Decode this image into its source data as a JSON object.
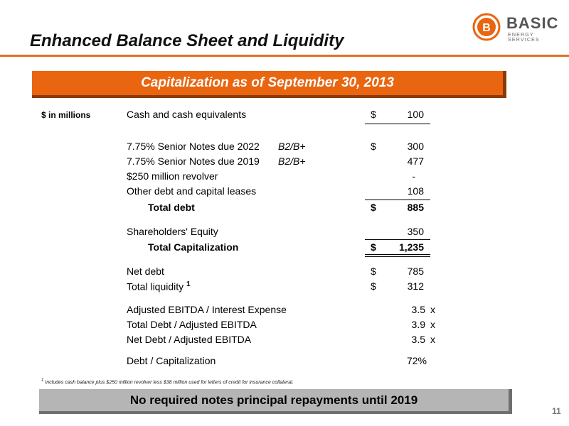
{
  "header": {
    "title": "Enhanced Balance Sheet and Liquidity",
    "logo_name": "BASIC",
    "logo_sub": "ENERGY SERVICES"
  },
  "banner": "Capitalization as of September 30, 2013",
  "units_label": "$ in millions",
  "rows": [
    {
      "label": "Cash and cash equivalents",
      "dollar": "$",
      "value": "100"
    },
    {
      "label": "7.75% Senior Notes due 2022",
      "rating": "B2/B+",
      "dollar": "$",
      "value": "300"
    },
    {
      "label": "7.75% Senior Notes due 2019",
      "rating": "B2/B+",
      "value": "477"
    },
    {
      "label": "$250 million revolver",
      "value": "-"
    },
    {
      "label": "Other debt and capital leases",
      "value": "108"
    },
    {
      "label": "Total debt",
      "dollar": "$",
      "value": "885"
    },
    {
      "label": "Shareholders' Equity",
      "value": "350"
    },
    {
      "label": "Total Capitalization",
      "dollar": "$",
      "value": "1,235"
    },
    {
      "label": "Net debt",
      "dollar": "$",
      "value": "785"
    },
    {
      "label": "Total liquidity",
      "superscript": "1",
      "dollar": "$",
      "value": "312"
    },
    {
      "label": "Adjusted EBITDA  / Interest Expense",
      "value": "3.5",
      "suffix": "x"
    },
    {
      "label": "Total Debt / Adjusted EBITDA",
      "value": "3.9",
      "suffix": "x"
    },
    {
      "label": "Net Debt / Adjusted EBITDA",
      "value": "3.5",
      "suffix": "x"
    },
    {
      "label": "Debt / Capitalization",
      "value": "72%"
    }
  ],
  "footnote": {
    "marker": "1",
    "text": "Includes cash balance plus $250 million revolver less $38 million used for letters of credit for insurance collateral."
  },
  "footer_banner": "No required notes principal repayments until 2019",
  "page_number": "11",
  "colors": {
    "accent": "#e9650f",
    "rule": "#e2711d",
    "footer_bg": "#b5b5b5"
  }
}
